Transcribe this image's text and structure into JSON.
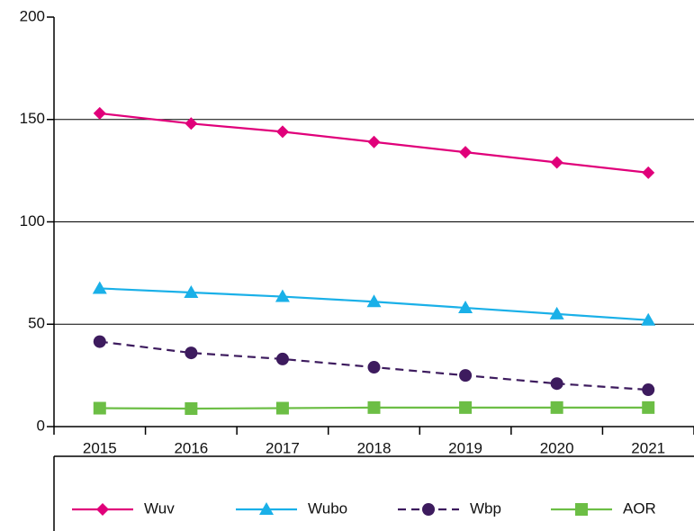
{
  "chart_data": {
    "type": "line",
    "categories": [
      "2015",
      "2016",
      "2017",
      "2018",
      "2019",
      "2020",
      "2021"
    ],
    "series": [
      {
        "name": "Wuv",
        "color": "#e0007a",
        "marker": "diamond",
        "dashed": false,
        "values": [
          153,
          148,
          144,
          139,
          134,
          129,
          124
        ]
      },
      {
        "name": "Wubo",
        "color": "#1ab0e8",
        "marker": "triangle",
        "dashed": false,
        "values": [
          67.5,
          65.5,
          63.5,
          61,
          58,
          55,
          52
        ]
      },
      {
        "name": "Wbp",
        "color": "#3d1b5e",
        "marker": "circle",
        "dashed": true,
        "values": [
          41.5,
          36,
          33,
          29,
          25,
          21,
          18
        ]
      },
      {
        "name": "AOR",
        "color": "#6cbe45",
        "marker": "square",
        "dashed": false,
        "values": [
          9,
          8.8,
          9,
          9.3,
          9.3,
          9.3,
          9.3
        ]
      }
    ],
    "ylim": [
      0,
      200
    ],
    "yticks": [
      0,
      50,
      100,
      150,
      200
    ],
    "grid": true,
    "legend": "bottom"
  }
}
